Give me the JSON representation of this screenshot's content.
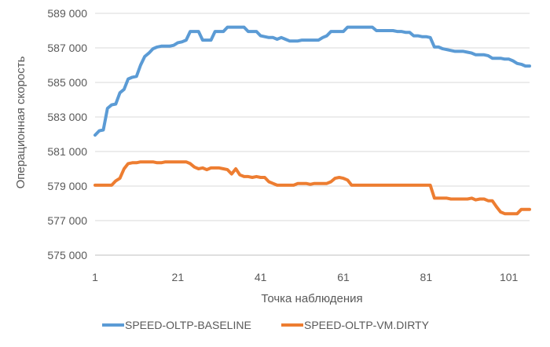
{
  "chart_data": {
    "type": "line",
    "title": "",
    "xlabel": "Точка наблюдения",
    "ylabel": "Операционная скорость",
    "xlim": [
      1,
      106
    ],
    "ylim": [
      575000,
      589000
    ],
    "x_ticks": [
      "1",
      "21",
      "41",
      "61",
      "81",
      "101"
    ],
    "y_ticks": [
      "575 000",
      "577 000",
      "579 000",
      "581 000",
      "583 000",
      "585 000",
      "587 000",
      "589 000"
    ],
    "grid": "horizontal",
    "legend_position": "bottom",
    "x": [
      1,
      2,
      3,
      4,
      5,
      6,
      7,
      8,
      9,
      10,
      11,
      12,
      13,
      14,
      15,
      16,
      17,
      18,
      19,
      20,
      21,
      22,
      23,
      24,
      25,
      26,
      27,
      28,
      29,
      30,
      31,
      32,
      33,
      34,
      35,
      36,
      37,
      38,
      39,
      40,
      41,
      42,
      43,
      44,
      45,
      46,
      47,
      48,
      49,
      50,
      51,
      52,
      53,
      54,
      55,
      56,
      57,
      58,
      59,
      60,
      61,
      62,
      63,
      64,
      65,
      66,
      67,
      68,
      69,
      70,
      71,
      72,
      73,
      74,
      75,
      76,
      77,
      78,
      79,
      80,
      81,
      82,
      83,
      84,
      85,
      86,
      87,
      88,
      89,
      90,
      91,
      92,
      93,
      94,
      95,
      96,
      97,
      98,
      99,
      100,
      101,
      102,
      103,
      104,
      105,
      106
    ],
    "series": [
      {
        "name": "SPEED-OLTP-BASELINE",
        "color": "#5B9BD5",
        "values": [
          581950,
          582200,
          582250,
          583500,
          583700,
          583750,
          584400,
          584600,
          585200,
          585300,
          585350,
          586000,
          586500,
          586700,
          586950,
          587050,
          587100,
          587100,
          587100,
          587150,
          587300,
          587350,
          587450,
          587950,
          587950,
          587950,
          587450,
          587450,
          587450,
          587950,
          587950,
          587950,
          588200,
          588200,
          588200,
          588200,
          588200,
          587950,
          587950,
          587950,
          587700,
          587650,
          587600,
          587600,
          587500,
          587600,
          587500,
          587400,
          587400,
          587400,
          587450,
          587450,
          587450,
          587450,
          587450,
          587600,
          587700,
          587950,
          587950,
          587950,
          587950,
          588200,
          588200,
          588200,
          588200,
          588200,
          588200,
          588200,
          588000,
          588000,
          588000,
          588000,
          588000,
          587950,
          587950,
          587900,
          587900,
          587700,
          587700,
          587650,
          587650,
          587600,
          587050,
          587050,
          586950,
          586900,
          586850,
          586800,
          586800,
          586800,
          586750,
          586700,
          586600,
          586600,
          586600,
          586550,
          586400,
          586400,
          586400,
          586350,
          586350,
          586250,
          586100,
          586050,
          585950,
          585950
        ]
      },
      {
        "name": "SPEED-OLTP-VM.DIRTY",
        "color": "#ED7D31",
        "values": [
          579050,
          579050,
          579050,
          579050,
          579050,
          579300,
          579450,
          580000,
          580300,
          580350,
          580350,
          580400,
          580400,
          580400,
          580400,
          580350,
          580350,
          580400,
          580400,
          580400,
          580400,
          580400,
          580400,
          580300,
          580100,
          580000,
          580050,
          579950,
          580050,
          580050,
          580050,
          580000,
          579950,
          579700,
          580000,
          579650,
          579550,
          579550,
          579500,
          579550,
          579500,
          579500,
          579250,
          579150,
          579050,
          579050,
          579050,
          579050,
          579050,
          579150,
          579150,
          579150,
          579100,
          579150,
          579150,
          579150,
          579150,
          579250,
          579450,
          579500,
          579450,
          579350,
          579050,
          579050,
          579050,
          579050,
          579050,
          579050,
          579050,
          579050,
          579050,
          579050,
          579050,
          579050,
          579050,
          579050,
          579050,
          579050,
          579050,
          579050,
          579050,
          579050,
          578300,
          578300,
          578300,
          578300,
          578250,
          578250,
          578250,
          578250,
          578250,
          578300,
          578200,
          578250,
          578250,
          578150,
          578150,
          577800,
          577500,
          577400,
          577400,
          577400,
          577400,
          577650,
          577650,
          577650
        ]
      }
    ]
  }
}
